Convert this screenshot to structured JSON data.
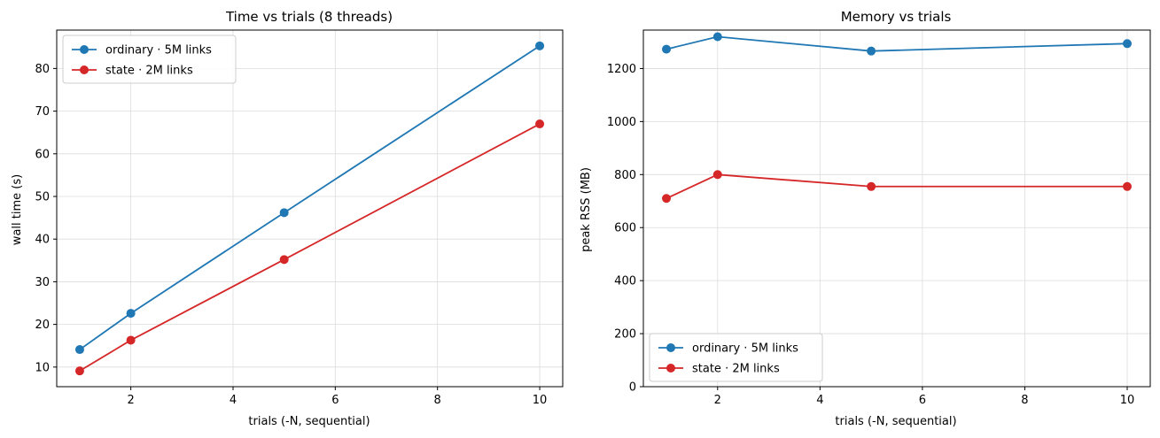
{
  "chart_data": [
    {
      "type": "line",
      "title": "Time vs trials (8 threads)",
      "xlabel": "trials (-N, sequential)",
      "ylabel": "wall time (s)",
      "xlim": [
        0.55,
        10.45
      ],
      "ylim": [
        5.4,
        89.0
      ],
      "xticks": [
        2,
        4,
        6,
        8,
        10
      ],
      "yticks": [
        10,
        20,
        30,
        40,
        50,
        60,
        70,
        80
      ],
      "grid": true,
      "legend": "upper-left",
      "series": [
        {
          "name": "ordinary · 5M links",
          "color": "#1f77b4",
          "x": [
            1,
            2,
            5,
            10
          ],
          "y": [
            14.1,
            22.6,
            46.2,
            85.3
          ]
        },
        {
          "name": "state · 2M links",
          "color": "#d62728",
          "x": [
            1,
            2,
            5,
            10
          ],
          "y": [
            9.1,
            16.3,
            35.2,
            67.0
          ]
        }
      ]
    },
    {
      "type": "line",
      "title": "Memory vs trials",
      "xlabel": "trials (-N, sequential)",
      "ylabel": "peak RSS (MB)",
      "xlim": [
        0.55,
        10.45
      ],
      "ylim": [
        0,
        1345
      ],
      "xticks": [
        2,
        4,
        6,
        8,
        10
      ],
      "yticks": [
        0,
        200,
        400,
        600,
        800,
        1000,
        1200
      ],
      "grid": true,
      "legend": "lower-left",
      "series": [
        {
          "name": "ordinary · 5M links",
          "color": "#1f77b4",
          "x": [
            1,
            2,
            5,
            10
          ],
          "y": [
            1273,
            1320,
            1266,
            1294
          ]
        },
        {
          "name": "state · 2M links",
          "color": "#d62728",
          "x": [
            1,
            2,
            5,
            10
          ],
          "y": [
            710,
            800,
            755,
            755
          ]
        }
      ]
    }
  ]
}
